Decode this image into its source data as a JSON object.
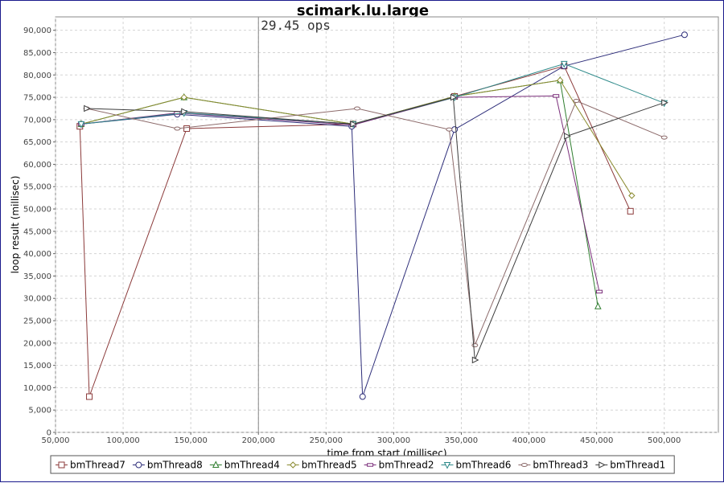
{
  "chart_data": {
    "type": "line",
    "title": "scimark.lu.large",
    "xlabel": "time from start (millisec)",
    "ylabel": "loop result (millisec)",
    "xlim": [
      50000,
      540000
    ],
    "ylim": [
      0,
      93000
    ],
    "grid": true,
    "legend_position": "bottom",
    "x_ticks": [
      50000,
      100000,
      150000,
      200000,
      250000,
      300000,
      350000,
      400000,
      450000,
      500000
    ],
    "x_tick_labels": [
      "50,000",
      "100,000",
      "150,000",
      "200,000",
      "250,000",
      "300,000",
      "350,000",
      "400,000",
      "450,000",
      "500,000"
    ],
    "y_ticks": [
      0,
      5000,
      10000,
      15000,
      20000,
      25000,
      30000,
      35000,
      40000,
      45000,
      50000,
      55000,
      60000,
      65000,
      70000,
      75000,
      80000,
      85000,
      90000
    ],
    "y_tick_labels": [
      "0",
      "5,000",
      "10,000",
      "15,000",
      "20,000",
      "25,000",
      "30,000",
      "35,000",
      "40,000",
      "45,000",
      "50,000",
      "55,000",
      "60,000",
      "65,000",
      "70,000",
      "75,000",
      "80,000",
      "85,000",
      "90,000"
    ],
    "annotation": {
      "x": 200000,
      "text": "29.45 ops"
    },
    "series": [
      {
        "name": "bmThread7",
        "color": "#8b3a3a",
        "marker": "square",
        "points": [
          [
            68000,
            68500
          ],
          [
            75000,
            8000
          ],
          [
            147000,
            68000
          ],
          [
            270000,
            69000
          ],
          [
            345000,
            75200
          ],
          [
            426000,
            82000
          ],
          [
            475000,
            49500
          ]
        ]
      },
      {
        "name": "bmThread8",
        "color": "#2e2e7a",
        "marker": "circle",
        "points": [
          [
            69000,
            69000
          ],
          [
            140000,
            71200
          ],
          [
            269000,
            68500
          ],
          [
            277000,
            8000
          ],
          [
            345000,
            67800
          ],
          [
            426000,
            82000
          ],
          [
            515000,
            89000
          ]
        ]
      },
      {
        "name": "bmThread4",
        "color": "#2e7d2e",
        "marker": "triangle-up",
        "points": [
          [
            69000,
            69000
          ],
          [
            145000,
            75000
          ],
          [
            270000,
            69000
          ],
          [
            345000,
            75200
          ],
          [
            423000,
            78800
          ],
          [
            451000,
            28200
          ]
        ]
      },
      {
        "name": "bmThread5",
        "color": "#8a8a2e",
        "marker": "diamond",
        "points": [
          [
            69000,
            69000
          ],
          [
            145000,
            75000
          ],
          [
            270000,
            69000
          ],
          [
            345000,
            75200
          ],
          [
            423000,
            78800
          ],
          [
            476000,
            53000
          ]
        ]
      },
      {
        "name": "bmThread2",
        "color": "#7a2e7a",
        "marker": "rect-wide",
        "points": [
          [
            69000,
            69000
          ],
          [
            140000,
            71500
          ],
          [
            270000,
            68800
          ],
          [
            345000,
            75000
          ],
          [
            420000,
            75300
          ],
          [
            452000,
            31500
          ]
        ]
      },
      {
        "name": "bmThread6",
        "color": "#2e8a8a",
        "marker": "triangle-down",
        "points": [
          [
            69000,
            69000
          ],
          [
            145000,
            71500
          ],
          [
            270000,
            69000
          ],
          [
            345000,
            75000
          ],
          [
            426000,
            82500
          ],
          [
            500000,
            73700
          ]
        ]
      },
      {
        "name": "bmThread3",
        "color": "#8c6a6a",
        "marker": "ellipse",
        "points": [
          [
            73000,
            72500
          ],
          [
            140000,
            68000
          ],
          [
            273000,
            72500
          ],
          [
            341000,
            67800
          ],
          [
            360000,
            19500
          ],
          [
            435000,
            74200
          ],
          [
            500000,
            66000
          ]
        ]
      },
      {
        "name": "bmThread1",
        "color": "#3d3d3d",
        "marker": "triangle-right",
        "points": [
          [
            73000,
            72500
          ],
          [
            145000,
            71800
          ],
          [
            270000,
            69000
          ],
          [
            344000,
            75000
          ],
          [
            360000,
            16200
          ],
          [
            428000,
            66300
          ],
          [
            500000,
            73800
          ]
        ]
      }
    ]
  }
}
